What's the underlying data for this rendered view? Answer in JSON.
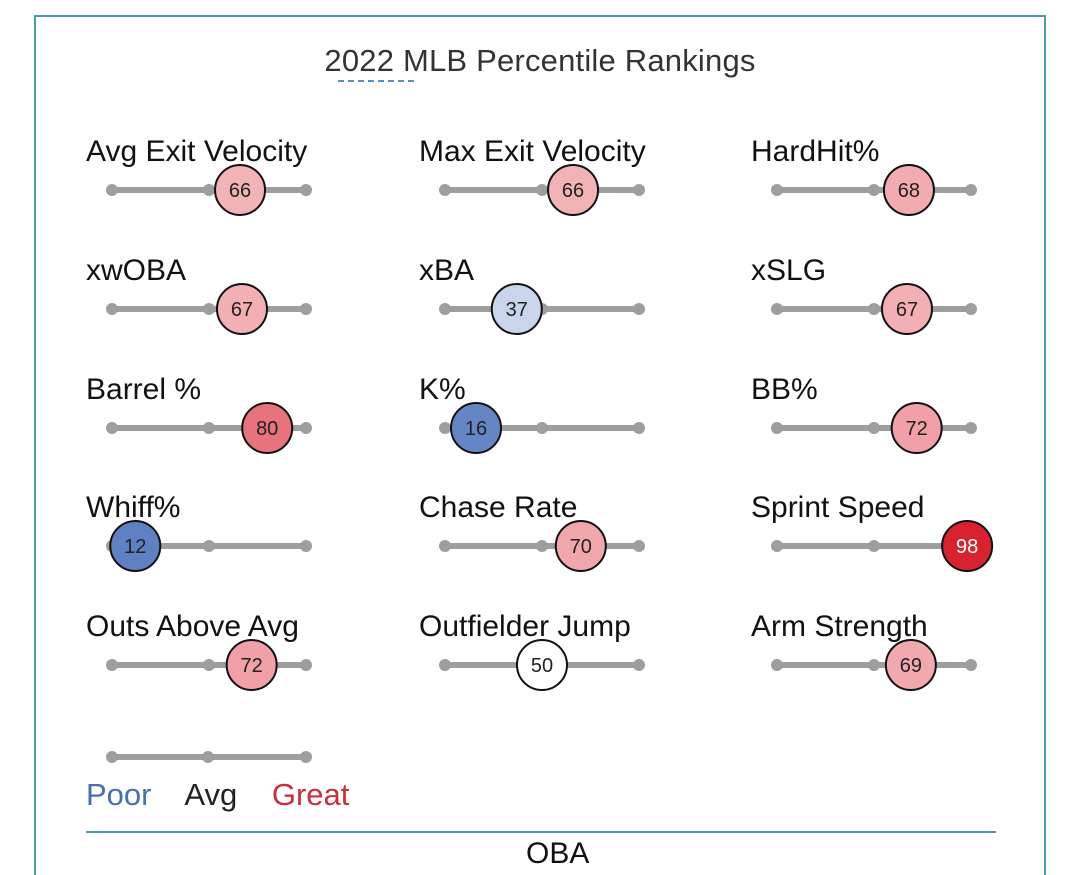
{
  "chart_data": {
    "type": "percentile-sliders",
    "title": "2022 MLB Percentile Rankings",
    "range": [
      0,
      100
    ],
    "metrics": [
      {
        "label": "Avg Exit Velocity",
        "value": 66,
        "color": "#f2b3b7"
      },
      {
        "label": "Max Exit Velocity",
        "value": 66,
        "color": "#f2b3b7"
      },
      {
        "label": "HardHit%",
        "value": 68,
        "color": "#f2abb0"
      },
      {
        "label": "xwOBA",
        "value": 67,
        "color": "#f2b0b4"
      },
      {
        "label": "xBA",
        "value": 37,
        "color": "#c9d5ec"
      },
      {
        "label": "xSLG",
        "value": 67,
        "color": "#f2b0b4"
      },
      {
        "label": "Barrel %",
        "value": 80,
        "color": "#e8737c"
      },
      {
        "label": "K%",
        "value": 16,
        "color": "#6486c4"
      },
      {
        "label": "BB%",
        "value": 72,
        "color": "#f0a0a6"
      },
      {
        "label": "Whiff%",
        "value": 12,
        "color": "#5f80c2"
      },
      {
        "label": "Chase Rate",
        "value": 70,
        "color": "#f0a6ab"
      },
      {
        "label": "Sprint Speed",
        "value": 98,
        "color": "#d7232f"
      },
      {
        "label": "Outs Above Avg",
        "value": 72,
        "color": "#f0a0a6"
      },
      {
        "label": "Outfielder Jump",
        "value": 50,
        "color": "#ffffff"
      },
      {
        "label": "Arm Strength",
        "value": 69,
        "color": "#f1a9ae"
      }
    ],
    "legend": {
      "poor": "Poor",
      "avg": "Avg",
      "great": "Great"
    }
  },
  "next_section": {
    "label": "OBA"
  },
  "colors": {
    "track": "#9e9e9e",
    "border": "#4f9aa6",
    "poor": "#4a6fb0",
    "great": "#c8303c"
  }
}
